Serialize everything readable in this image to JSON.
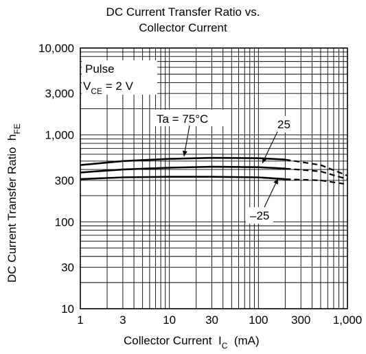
{
  "chart_data": {
    "type": "line",
    "title_line1": "DC Current Transfer Ratio vs.",
    "title_line2": "Collector Current",
    "xlabel": "Collector Current",
    "xlabel_symbol": "I",
    "xlabel_sub": "C",
    "xlabel_unit": "(mA)",
    "ylabel": "DC Current Transfer Ratio",
    "ylabel_symbol": "h",
    "ylabel_sub": "FE",
    "xscale": "log",
    "yscale": "log",
    "xlim": [
      1,
      1000
    ],
    "ylim": [
      10,
      10000
    ],
    "grid": true,
    "x_ticks": [
      {
        "value": 1,
        "label": "1"
      },
      {
        "value": 3,
        "label": "3"
      },
      {
        "value": 10,
        "label": "10"
      },
      {
        "value": 30,
        "label": "30"
      },
      {
        "value": 100,
        "label": "100"
      },
      {
        "value": 300,
        "label": "300"
      },
      {
        "value": 1000,
        "label": "1,000"
      }
    ],
    "y_ticks": [
      {
        "value": 10,
        "label": "10"
      },
      {
        "value": 30,
        "label": "30"
      },
      {
        "value": 100,
        "label": "100"
      },
      {
        "value": 300,
        "label": "300"
      },
      {
        "value": 1000,
        "label": "1,000"
      },
      {
        "value": 3000,
        "label": "3,000"
      },
      {
        "value": 10000,
        "label": "10,000"
      }
    ],
    "conditions": {
      "line1": "Pulse",
      "line2_main": "V",
      "line2_sub": "CE",
      "line2_rest": " = 2 V"
    },
    "series": [
      {
        "name": "Ta = 75°C",
        "label": "Ta = 75°C",
        "solid": [
          [
            1,
            450
          ],
          [
            3,
            500
          ],
          [
            10,
            530
          ],
          [
            30,
            545
          ],
          [
            100,
            540
          ],
          [
            200,
            520
          ]
        ],
        "dashed": [
          [
            200,
            520
          ],
          [
            500,
            450
          ],
          [
            1000,
            340
          ]
        ]
      },
      {
        "name": "25",
        "label": "25",
        "solid": [
          [
            1,
            370
          ],
          [
            3,
            400
          ],
          [
            10,
            420
          ],
          [
            30,
            430
          ],
          [
            100,
            425
          ],
          [
            200,
            410
          ]
        ],
        "dashed": [
          [
            200,
            410
          ],
          [
            500,
            380
          ],
          [
            1000,
            310
          ]
        ]
      },
      {
        "name": "–25",
        "label": "–25",
        "solid": [
          [
            1,
            310
          ],
          [
            3,
            325
          ],
          [
            10,
            330
          ],
          [
            30,
            330
          ],
          [
            100,
            325
          ],
          [
            200,
            310
          ]
        ],
        "dashed": [
          [
            200,
            310
          ],
          [
            500,
            300
          ],
          [
            1000,
            270
          ]
        ]
      }
    ]
  }
}
